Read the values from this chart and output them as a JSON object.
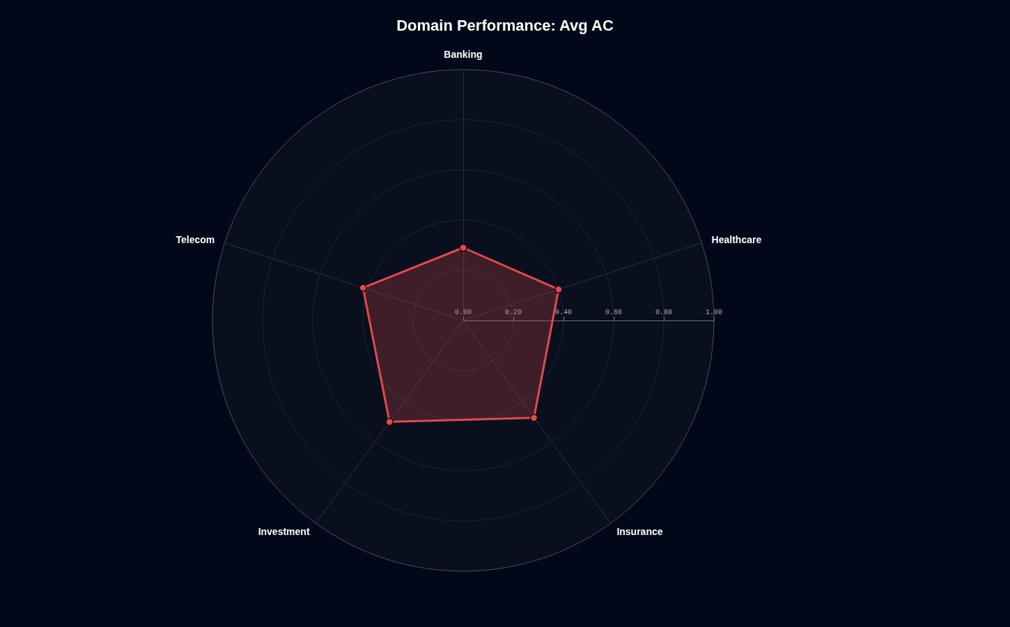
{
  "chart_data": {
    "type": "radar",
    "title": "Domain Performance: Avg AC",
    "categories": [
      "Banking",
      "Healthcare",
      "Insurance",
      "Investment",
      "Telecom"
    ],
    "series": [
      {
        "color": "#e04b4f",
        "values": [
          0.29,
          0.4,
          0.48,
          0.5,
          0.42
        ]
      }
    ],
    "ylim": [
      0,
      1
    ],
    "yticks": [
      {
        "value": 0,
        "label": "0.00"
      },
      {
        "value": 0.2,
        "label": "0.20"
      },
      {
        "value": 0.4,
        "label": "0.40"
      },
      {
        "value": 0.6,
        "label": "0.60"
      },
      {
        "value": 0.8,
        "label": "0.80"
      },
      {
        "value": 1,
        "label": "1.00"
      }
    ],
    "grid": true,
    "marker": "circle"
  }
}
